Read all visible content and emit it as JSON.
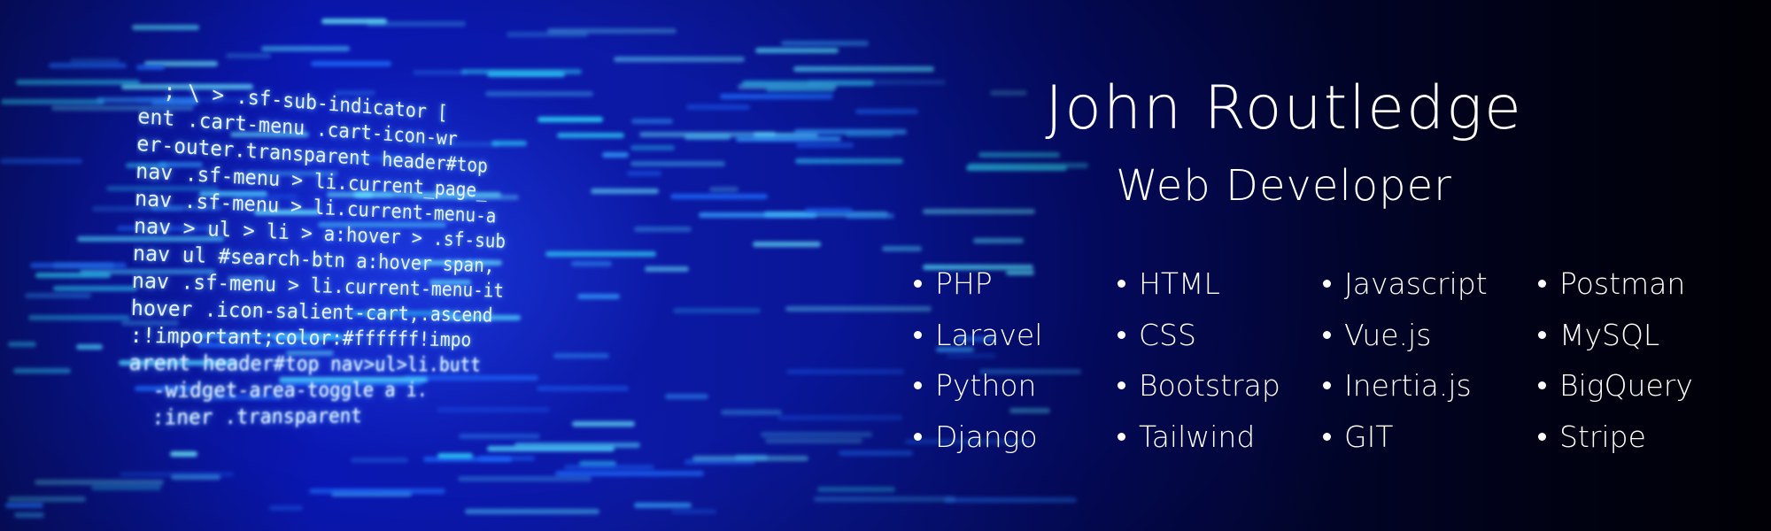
{
  "header": {
    "name": "John Routledge",
    "title": "Web Developer"
  },
  "code_background": {
    "lines": [
      "  ; \\ > .sf-sub-indicator [",
      "ent .cart-menu .cart-icon-wr",
      "er-outer.transparent header#top",
      "nav .sf-menu > li.current_page_",
      "nav .sf-menu > li.current-menu-a",
      "nav > ul > li > a:hover > .sf-sub",
      "nav ul #search-btn a:hover span,",
      "nav .sf-menu > li.current-menu-it",
      "hover .icon-salient-cart,.ascend",
      ":!important;color:#ffffff!impo",
      "arent header#top nav>ul>li.butt",
      "  -widget-area-toggle a i.",
      "  :iner .transparent"
    ]
  },
  "skills": {
    "columns": [
      [
        "PHP",
        "Laravel",
        "Python",
        "Django"
      ],
      [
        "HTML",
        "CSS",
        "Bootstrap",
        "Tailwind"
      ],
      [
        "Javascript",
        "Vue.js",
        "Inertia.js",
        "GIT"
      ],
      [
        "Postman",
        "MySQL",
        "BigQuery",
        "Stripe"
      ]
    ]
  },
  "colors": {
    "background_blue": "#0a18b8",
    "text": "#ffffff",
    "code_glow": "#78c8ff"
  }
}
